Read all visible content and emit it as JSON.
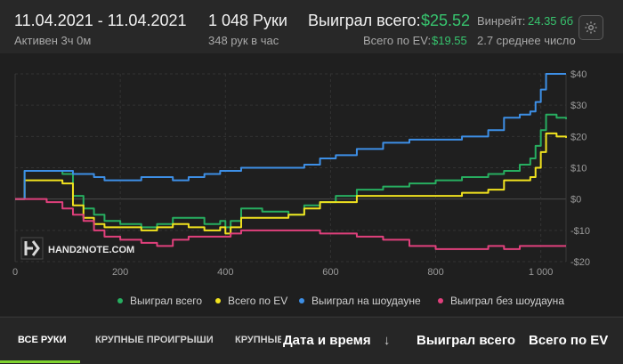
{
  "header": {
    "date_range": "11.04.2021 - 11.04.2021",
    "active": "Активен 3ч 0м",
    "hands": "1 048 Руки",
    "hands_per_hour": "348 рук в час",
    "won_total_label": "Выиграл всего:",
    "won_total_value": "$25.52",
    "ev_label": "Всего по EV:",
    "ev_value": "$19.55",
    "winrate_label": "Винрейт:",
    "winrate_value": "24.35 бб",
    "avg_label": "2.7 среднее число",
    "settings_icon": "gear-icon"
  },
  "colors": {
    "won": "#27ae60",
    "ev": "#f1e21f",
    "showdown": "#3d8fe6",
    "nonshowdown": "#e0407c",
    "accent": "#7fd32f",
    "positive": "#37c46e"
  },
  "logo": {
    "text": "HAND2NOTE.COM"
  },
  "chart_data": {
    "type": "line",
    "xlim": [
      0,
      1048
    ],
    "ylim": [
      -20,
      40
    ],
    "x_ticks": [
      0,
      200,
      400,
      600,
      800,
      1000
    ],
    "x_tick_labels": [
      "0",
      "200",
      "400",
      "600",
      "800",
      "1 000"
    ],
    "y_ticks": [
      40,
      30,
      20,
      10,
      0,
      -10,
      -20
    ],
    "y_tick_labels": [
      "$40",
      "$30",
      "$20",
      "$10",
      "$0",
      "-$10",
      "-$20"
    ],
    "grid": true,
    "legend_position": "bottom",
    "series": [
      {
        "name": "Выиграл всего",
        "color": "#27ae60",
        "points": [
          [
            0,
            0
          ],
          [
            15,
            0
          ],
          [
            18,
            9
          ],
          [
            60,
            9
          ],
          [
            90,
            8
          ],
          [
            110,
            1
          ],
          [
            130,
            -3
          ],
          [
            150,
            -5
          ],
          [
            170,
            -7
          ],
          [
            200,
            -8
          ],
          [
            240,
            -9
          ],
          [
            270,
            -8
          ],
          [
            300,
            -6
          ],
          [
            330,
            -6
          ],
          [
            360,
            -8
          ],
          [
            390,
            -7
          ],
          [
            400,
            -9
          ],
          [
            410,
            -7
          ],
          [
            430,
            -3
          ],
          [
            470,
            -4
          ],
          [
            520,
            -5
          ],
          [
            550,
            -2
          ],
          [
            580,
            -1
          ],
          [
            610,
            1
          ],
          [
            650,
            3
          ],
          [
            700,
            4
          ],
          [
            750,
            5
          ],
          [
            800,
            6
          ],
          [
            850,
            7
          ],
          [
            900,
            8
          ],
          [
            930,
            9
          ],
          [
            960,
            11
          ],
          [
            980,
            13
          ],
          [
            990,
            17
          ],
          [
            1000,
            22
          ],
          [
            1010,
            27
          ],
          [
            1030,
            26
          ],
          [
            1048,
            25.52
          ]
        ]
      },
      {
        "name": "Всего по EV",
        "color": "#f1e21f",
        "points": [
          [
            0,
            0
          ],
          [
            15,
            0
          ],
          [
            18,
            6
          ],
          [
            60,
            6
          ],
          [
            90,
            5
          ],
          [
            110,
            -2
          ],
          [
            130,
            -6
          ],
          [
            150,
            -8
          ],
          [
            170,
            -9
          ],
          [
            200,
            -9
          ],
          [
            240,
            -10
          ],
          [
            270,
            -9
          ],
          [
            300,
            -8
          ],
          [
            330,
            -9
          ],
          [
            360,
            -10
          ],
          [
            390,
            -9
          ],
          [
            400,
            -11
          ],
          [
            410,
            -9
          ],
          [
            430,
            -6
          ],
          [
            470,
            -6
          ],
          [
            520,
            -5
          ],
          [
            550,
            -3
          ],
          [
            580,
            -1
          ],
          [
            610,
            -1
          ],
          [
            650,
            1
          ],
          [
            700,
            1
          ],
          [
            750,
            1
          ],
          [
            800,
            1
          ],
          [
            850,
            2
          ],
          [
            900,
            3
          ],
          [
            930,
            6
          ],
          [
            960,
            6
          ],
          [
            980,
            7
          ],
          [
            990,
            10
          ],
          [
            1000,
            15
          ],
          [
            1010,
            21
          ],
          [
            1030,
            20
          ],
          [
            1048,
            19.55
          ]
        ]
      },
      {
        "name": "Выиграл на шоудауне",
        "color": "#3d8fe6",
        "points": [
          [
            0,
            0
          ],
          [
            15,
            0
          ],
          [
            18,
            9
          ],
          [
            60,
            9
          ],
          [
            90,
            9
          ],
          [
            110,
            8
          ],
          [
            130,
            8
          ],
          [
            150,
            7
          ],
          [
            170,
            6
          ],
          [
            200,
            6
          ],
          [
            240,
            7
          ],
          [
            270,
            7
          ],
          [
            300,
            6
          ],
          [
            330,
            7
          ],
          [
            360,
            8
          ],
          [
            390,
            9
          ],
          [
            400,
            9
          ],
          [
            430,
            10
          ],
          [
            470,
            10
          ],
          [
            520,
            10
          ],
          [
            550,
            11
          ],
          [
            580,
            13
          ],
          [
            610,
            14
          ],
          [
            650,
            16
          ],
          [
            700,
            18
          ],
          [
            750,
            19
          ],
          [
            800,
            19
          ],
          [
            850,
            20
          ],
          [
            900,
            22
          ],
          [
            930,
            26
          ],
          [
            960,
            27
          ],
          [
            980,
            28
          ],
          [
            990,
            31
          ],
          [
            1000,
            35
          ],
          [
            1010,
            40
          ],
          [
            1030,
            40
          ],
          [
            1048,
            40
          ]
        ]
      },
      {
        "name": "Выиграл без шоудауна",
        "color": "#e0407c",
        "points": [
          [
            0,
            0
          ],
          [
            15,
            0
          ],
          [
            40,
            0
          ],
          [
            60,
            -1
          ],
          [
            90,
            -3
          ],
          [
            110,
            -5
          ],
          [
            130,
            -7
          ],
          [
            150,
            -10
          ],
          [
            170,
            -12
          ],
          [
            200,
            -13
          ],
          [
            240,
            -14
          ],
          [
            270,
            -15
          ],
          [
            300,
            -13
          ],
          [
            330,
            -12
          ],
          [
            360,
            -12
          ],
          [
            390,
            -12
          ],
          [
            400,
            -12
          ],
          [
            410,
            -11
          ],
          [
            430,
            -10
          ],
          [
            470,
            -10
          ],
          [
            520,
            -10
          ],
          [
            550,
            -10
          ],
          [
            580,
            -11
          ],
          [
            610,
            -11
          ],
          [
            650,
            -12
          ],
          [
            700,
            -13
          ],
          [
            750,
            -15
          ],
          [
            800,
            -16
          ],
          [
            850,
            -16
          ],
          [
            900,
            -15
          ],
          [
            930,
            -16
          ],
          [
            960,
            -15
          ],
          [
            980,
            -15
          ],
          [
            1000,
            -15
          ],
          [
            1010,
            -15
          ],
          [
            1030,
            -15
          ],
          [
            1048,
            -15
          ]
        ]
      }
    ]
  },
  "tabs": [
    {
      "label": "ВСЕ РУКИ",
      "active": true
    },
    {
      "label": "КРУПНЫЕ ПРОИГРЫШИ",
      "active": false
    },
    {
      "label": "КРУПНЫЕ В",
      "active": false
    }
  ],
  "table_headers": {
    "date_time": "Дата и время",
    "sort_icon": "arrow-down-icon",
    "won_total": "Выиграл всего",
    "ev_total": "Всего по EV"
  }
}
